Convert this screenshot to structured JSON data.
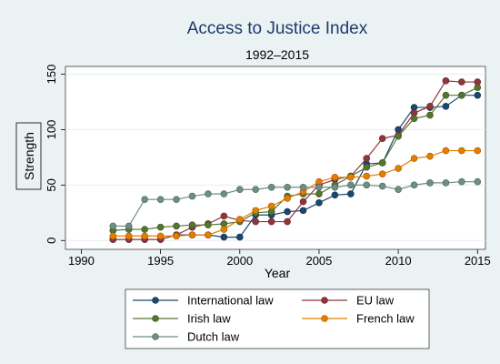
{
  "chart_data": {
    "type": "line",
    "title": "Access to Justice Index",
    "subtitle": "1992–2015",
    "xlabel": "Year",
    "ylabel": "Strength",
    "xlim": [
      1989,
      2015.5
    ],
    "ylim": [
      -8,
      157
    ],
    "xticks": [
      1990,
      1995,
      2000,
      2005,
      2010,
      2015
    ],
    "yticks": [
      0,
      50,
      100,
      150
    ],
    "grid": "horizontal",
    "legend_position": "bottom",
    "x": [
      1992,
      1993,
      1994,
      1995,
      1996,
      1997,
      1998,
      1999,
      2000,
      2001,
      2002,
      2003,
      2004,
      2005,
      2006,
      2007,
      2008,
      2009,
      2010,
      2011,
      2012,
      2013,
      2014,
      2015
    ],
    "series": [
      {
        "name": "International law",
        "color": "#1a476f",
        "values": [
          1,
          1,
          1,
          1,
          5,
          5,
          5,
          3,
          3,
          23,
          23,
          26,
          27,
          34,
          41,
          42,
          69,
          70,
          100,
          120,
          120,
          121,
          131,
          131
        ]
      },
      {
        "name": "EU law",
        "color": "#90353b",
        "values": [
          1,
          1,
          1,
          1,
          5,
          12,
          15,
          22,
          18,
          17,
          17,
          17,
          35,
          50,
          55,
          58,
          74,
          92,
          95,
          115,
          121,
          144,
          143,
          143
        ]
      },
      {
        "name": "Irish law",
        "color": "#55752f",
        "values": [
          9,
          10,
          10,
          12,
          13,
          14,
          14,
          15,
          17,
          25,
          26,
          40,
          42,
          42,
          50,
          58,
          66,
          70,
          94,
          110,
          113,
          131,
          131,
          138
        ]
      },
      {
        "name": "French law",
        "color": "#e37e00",
        "values": [
          4,
          4,
          4,
          4,
          4,
          5,
          5,
          10,
          19,
          27,
          31,
          38,
          44,
          53,
          57,
          57,
          58,
          60,
          65,
          74,
          76,
          81,
          81,
          81
        ]
      },
      {
        "name": "Dutch law",
        "color": "#6e8e84",
        "values": [
          13,
          13,
          37,
          37,
          37,
          40,
          42,
          42,
          46,
          46,
          48,
          48,
          48,
          48,
          48,
          50,
          50,
          49,
          46,
          50,
          52,
          52,
          53,
          53
        ]
      }
    ]
  }
}
